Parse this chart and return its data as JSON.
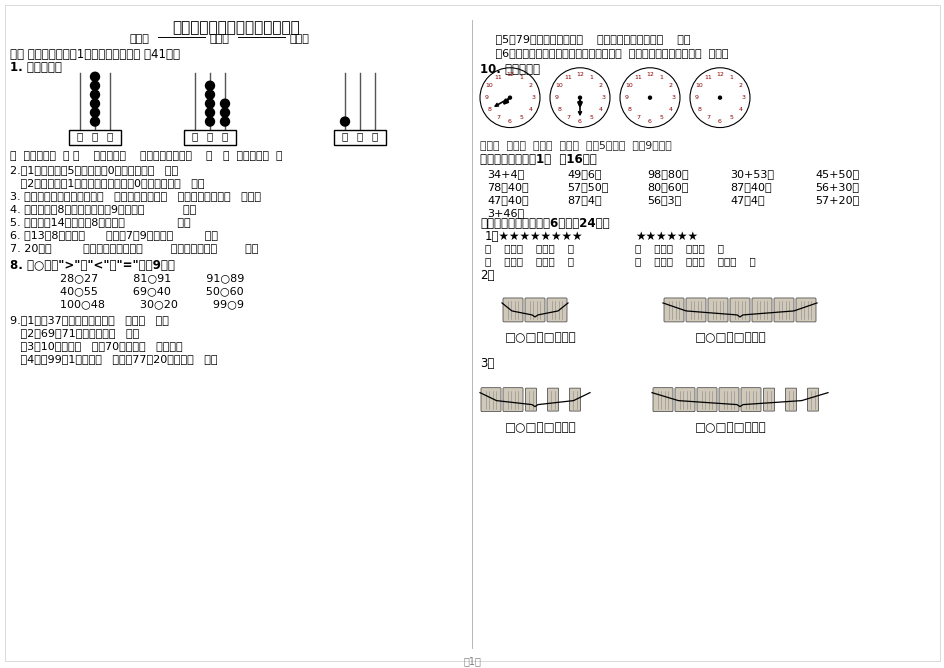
{
  "bg_color": "#ffffff",
  "title": "一年级数学下册第一次月考试题",
  "subtitle_left": "班级：",
  "subtitle_mid": "姓名：",
  "subtitle_right": "成绩：",
  "sec1": "一、 填空题。（每空1分，其他每空一分 共41分）",
  "q1": "1. 看图填空。",
  "q1_bottom": "（  ）个十是（  ） （    ）个十和（    ）个一合起来是（    ）   （  ）个百是（  ）",
  "q2a": "2.（1）十位上是5，个位上是0，这个数是（   ）。",
  "q2b": "   （2）百位上是1，十位和个位上都是0，这个数是（   ）。",
  "q3": "3. 一个数从右边起第一位是（   ）位，第二位是（   ）位，第三位是（   ）位。",
  "q4": "4. 一个加数是8，另一个加数是9，和是（           ）。",
  "q5": "5. 被减数是14，减数是8，差是（               ）。",
  "q6": "6. 比13多8的数是（      ），比7多9的数是（         ）。",
  "q7": "7. 20是（         ）位数，个位上是（        ），十位上是（        ）。",
  "q8_hdr": "8. 在○里填\">\"、\"<\"或\"=\"。（9分）",
  "q8_r1": "28○27          81○91          91○89",
  "q8_r2": "40○55          69○40          50○60",
  "q8_r3": "100○48          30○20          99○9",
  "q9_1": "9.（1）和37相邻的两个数是（   ）和（   ）。",
  "q9_2": "   （2）69和71中间的数是（   ）。",
  "q9_3": "   （3）10个十是（   ），70里面有（   ）个十。",
  "q9_4": "   （4）比99多1的数是（   ），比77少20的数是（   ）。",
  "q9_5": "   （5）79前面的一个数是（    ），后面的一个数是（    ）。",
  "q9_6": "   （6）当钟表面上的时针与分针重合时是（  ）时，成一条直线时是（  ）时。",
  "q10_hdr": "10. 明明的一天",
  "q10_cap": "早上（  ）上学  中午（  ）放学  下午5时放学  大约9时睡觉",
  "sec2": "二、计算。（每题1分  共16分）",
  "calc": [
    [
      "34+4＝",
      "49－6＝",
      "98－80＝",
      "30+53＝",
      "45+50＝"
    ],
    [
      "78－40＝",
      "57－50＝",
      "80－60＝",
      "87－40＝",
      "56+30＝"
    ],
    [
      "47－40＝",
      "87－4＝",
      "56－3＝",
      "47－4＝",
      "57+20＝"
    ],
    [
      "3+46＝"
    ]
  ],
  "sec3": "三、看图列式：（每题6分，共24分）",
  "stars_left": "1、★★★★★★★★",
  "stars_right": "★★★★★★",
  "stars_eq1_l": "（    ）＋（    ）＝（    ）",
  "stars_eq1_r": "（    ）－（    ）＝（    ）",
  "stars_eq2_l": "（    ）＋（    ）＝（    ）",
  "stars_eq2_r": "（    ）－（    ）－（    ）＝（    ）",
  "q2_lbl": "2、",
  "q3_lbl": "3、",
  "box_eqs": [
    "□○□＝□（根）",
    "□○□＝□（根）",
    "□○□＝□（根）",
    "□○□＝□（根）"
  ],
  "page": "第1页"
}
